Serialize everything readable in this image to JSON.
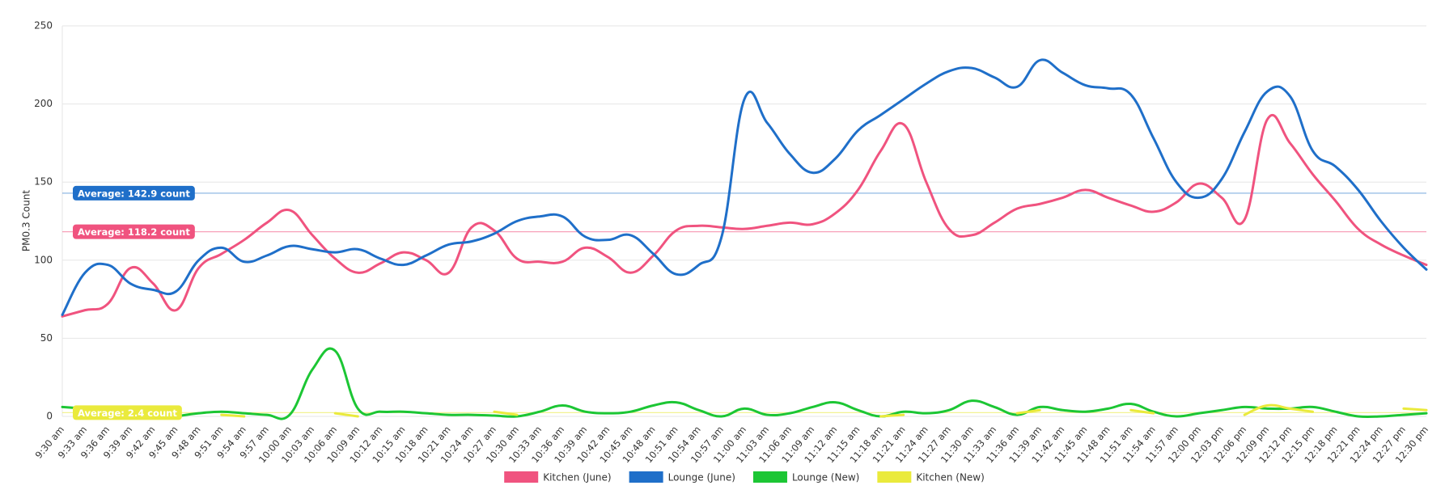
{
  "chart_data": {
    "type": "line",
    "y_label": "PM0.3 Count",
    "ylim": [
      0,
      250
    ],
    "yticks": [
      0,
      50,
      100,
      150,
      200,
      250
    ],
    "grid": true,
    "legend": "bottom",
    "categories": [
      "9:30 am",
      "9:33 am",
      "9:36 am",
      "9:39 am",
      "9:42 am",
      "9:45 am",
      "9:48 am",
      "9:51 am",
      "9:54 am",
      "9:57 am",
      "10:00 am",
      "10:03 am",
      "10:06 am",
      "10:09 am",
      "10:12 am",
      "10:15 am",
      "10:18 am",
      "10:21 am",
      "10:24 am",
      "10:27 am",
      "10:30 am",
      "10:33 am",
      "10:36 am",
      "10:39 am",
      "10:42 am",
      "10:45 am",
      "10:48 am",
      "10:51 am",
      "10:54 am",
      "10:57 am",
      "11:00 am",
      "11:03 am",
      "11:06 am",
      "11:09 am",
      "11:12 am",
      "11:15 am",
      "11:18 am",
      "11:21 am",
      "11:24 am",
      "11:27 am",
      "11:30 am",
      "11:33 am",
      "11:36 am",
      "11:39 am",
      "11:42 am",
      "11:45 am",
      "11:48 am",
      "11:51 am",
      "11:54 am",
      "11:57 am",
      "12:00 pm",
      "12:03 pm",
      "12:06 pm",
      "12:09 pm",
      "12:12 pm",
      "12:15 pm",
      "12:18 pm",
      "12:21 pm",
      "12:24 pm",
      "12:27 pm",
      "12:30 pm"
    ],
    "series": [
      {
        "name": "Kitchen (June)",
        "color": "#f0537f",
        "values": [
          64,
          68,
          72,
          95,
          85,
          68,
          95,
          104,
          113,
          124,
          132,
          116,
          101,
          92,
          98,
          105,
          100,
          92,
          121,
          119,
          101,
          99,
          99,
          108,
          102,
          92,
          103,
          119,
          122,
          121,
          120,
          122,
          124,
          123,
          130,
          145,
          170,
          187,
          150,
          120,
          116,
          124,
          133,
          136,
          140,
          145,
          140,
          135,
          131,
          137,
          149,
          140,
          126,
          190,
          175,
          155,
          138,
          120,
          110,
          103,
          97
        ]
      },
      {
        "name": "Lounge (June)",
        "color": "#1f6fc9",
        "values": [
          65,
          92,
          97,
          85,
          81,
          80,
          100,
          108,
          99,
          103,
          109,
          107,
          105,
          107,
          101,
          97,
          103,
          110,
          112,
          117,
          125,
          128,
          128,
          115,
          113,
          116,
          104,
          91,
          97,
          115,
          203,
          188,
          168,
          156,
          165,
          183,
          193,
          203,
          213,
          221,
          223,
          217,
          211,
          228,
          220,
          212,
          210,
          206,
          178,
          150,
          140,
          152,
          182,
          208,
          205,
          170,
          160,
          145,
          125,
          108,
          94
        ]
      },
      {
        "name": "Lounge (New)",
        "color": "#1cc634",
        "values": [
          6,
          5,
          null,
          null,
          null,
          0,
          2,
          3,
          2,
          1,
          1,
          30,
          42,
          5,
          3,
          3,
          2,
          1,
          1,
          0.5,
          0,
          3,
          7,
          3,
          2,
          3,
          7,
          9,
          4,
          0,
          5,
          1,
          2,
          6,
          9,
          4,
          0,
          3,
          2,
          4,
          10,
          6,
          1,
          6,
          4,
          3,
          5,
          8,
          3,
          0,
          2,
          4,
          6,
          5,
          5,
          6,
          3,
          0,
          0,
          1,
          2
        ]
      },
      {
        "name": "Kitchen (New)",
        "color": "#eaea3c",
        "values": [
          null,
          null,
          null,
          null,
          null,
          null,
          null,
          1,
          0,
          null,
          null,
          null,
          2,
          0,
          null,
          null,
          null,
          null,
          null,
          3,
          1,
          null,
          null,
          null,
          null,
          null,
          null,
          null,
          null,
          null,
          null,
          null,
          null,
          null,
          null,
          null,
          0,
          1,
          null,
          null,
          null,
          null,
          2,
          4,
          null,
          null,
          null,
          4,
          2,
          null,
          null,
          null,
          1,
          7,
          5,
          3,
          null,
          null,
          null,
          5,
          4
        ]
      }
    ],
    "annotations": [
      {
        "label": "Average: 142.9 count",
        "value": 142.9,
        "color": "#1f6fc9"
      },
      {
        "label": "Average: 118.2 count",
        "value": 118.2,
        "color": "#f0537f"
      },
      {
        "label": "Average: 2.4 count",
        "value": 2.4,
        "color": "#eaea3c"
      }
    ]
  }
}
